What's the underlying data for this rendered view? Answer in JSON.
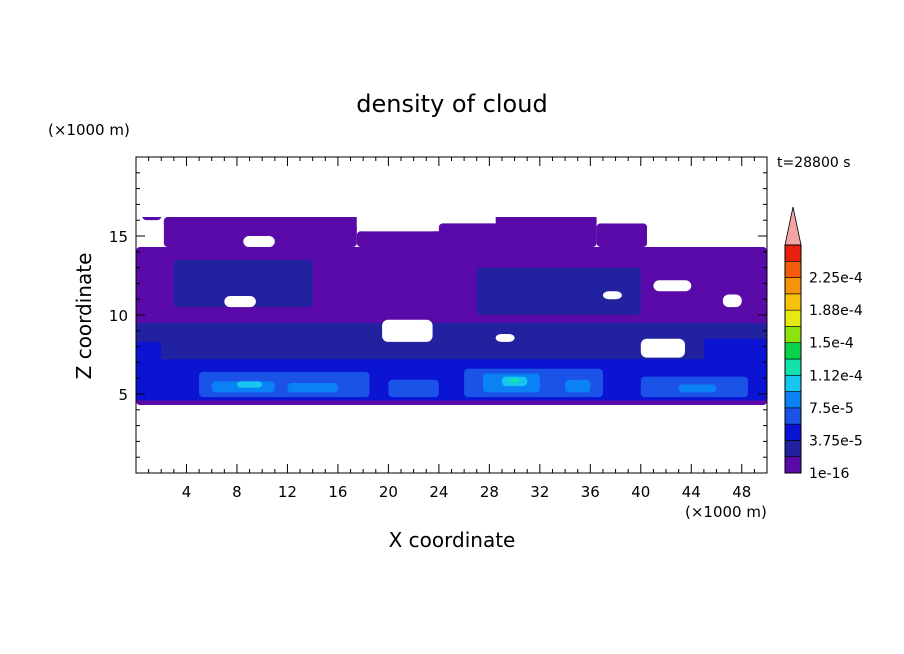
{
  "chart_data": {
    "type": "heatmap",
    "title": "density of cloud",
    "xlabel": "X coordinate",
    "ylabel": "Z coordinate",
    "x_unit": "(×1000 m)",
    "y_unit": "(×1000 m)",
    "time_label": "t=28800 s",
    "xlim": [
      0,
      50
    ],
    "ylim": [
      0,
      20
    ],
    "x_ticks": [
      4,
      8,
      12,
      16,
      20,
      24,
      28,
      32,
      36,
      40,
      44,
      48
    ],
    "y_ticks": [
      5,
      10,
      15
    ],
    "colorbar": {
      "levels": [
        {
          "value": 1e-16,
          "color": "#5a0aa8"
        },
        {
          "value": 1.875e-05,
          "color": "#2222a0"
        },
        {
          "value": 3.75e-05,
          "color": "#0b14d2"
        },
        {
          "value": 5.625e-05,
          "color": "#1b52e8"
        },
        {
          "value": 7.5e-05,
          "color": "#0a82f5"
        },
        {
          "value": 9.375e-05,
          "color": "#16c6ee"
        },
        {
          "value": 0.0001125,
          "color": "#11e2ae"
        },
        {
          "value": 0.00013125,
          "color": "#08d24a"
        },
        {
          "value": 0.00015,
          "color": "#8ce40e"
        },
        {
          "value": 0.00016875,
          "color": "#e8e812"
        },
        {
          "value": 0.0001875,
          "color": "#f7c20c"
        },
        {
          "value": 0.00020625,
          "color": "#f5940a"
        },
        {
          "value": 0.000225,
          "color": "#f25c0a"
        },
        {
          "value": 0.00024375,
          "color": "#e8200e"
        }
      ],
      "labels": [
        "1e-16",
        "3.75e-5",
        "7.5e-5",
        "1.12e-4",
        "1.5e-4",
        "1.88e-4",
        "2.25e-4"
      ],
      "extend_color": "#f3a5a5"
    },
    "regions": [
      {
        "level": 0,
        "x": [
          0,
          50
        ],
        "z": [
          4.3,
          14.3
        ]
      },
      {
        "level": 0,
        "x": [
          2.2,
          11.5
        ],
        "z": [
          14.3,
          16.2
        ]
      },
      {
        "level": 0,
        "x": [
          0.5,
          2.0
        ],
        "z": [
          16.0,
          17.0
        ]
      },
      {
        "level": 0,
        "x": [
          3.0,
          7.0
        ],
        "z": [
          17.0,
          18.0
        ]
      },
      {
        "level": 0,
        "x": [
          11.0,
          17.5
        ],
        "z": [
          14.3,
          17.8
        ]
      },
      {
        "level": 0,
        "x": [
          17.5,
          28.5
        ],
        "z": [
          14.3,
          15.3
        ]
      },
      {
        "level": 0,
        "x": [
          17.0,
          22.0
        ],
        "z": [
          17.0,
          18.8
        ]
      },
      {
        "level": 0,
        "x": [
          24.0,
          30.0
        ],
        "z": [
          14.3,
          15.8
        ]
      },
      {
        "level": 0,
        "x": [
          28.5,
          36.5
        ],
        "z": [
          14.3,
          17.5
        ]
      },
      {
        "level": 0,
        "x": [
          36.5,
          40.5
        ],
        "z": [
          14.3,
          15.8
        ]
      },
      {
        "level": 0,
        "x": [
          47.0,
          50.0
        ],
        "z": [
          18.0,
          18.6
        ]
      },
      {
        "level": 1,
        "x": [
          0,
          50
        ],
        "z": [
          4.8,
          9.5
        ]
      },
      {
        "level": 1,
        "x": [
          3.0,
          14.0
        ],
        "z": [
          10.5,
          13.5
        ]
      },
      {
        "level": 1,
        "x": [
          27.0,
          40.0
        ],
        "z": [
          10.0,
          13.0
        ]
      },
      {
        "level": 2,
        "x": [
          0,
          50
        ],
        "z": [
          4.6,
          7.2
        ]
      },
      {
        "level": 2,
        "x": [
          0,
          2.0
        ],
        "z": [
          7.2,
          8.3
        ]
      },
      {
        "level": 2,
        "x": [
          45.0,
          50.0
        ],
        "z": [
          7.0,
          8.5
        ]
      },
      {
        "level": 3,
        "x": [
          5.0,
          18.5
        ],
        "z": [
          4.8,
          6.4
        ]
      },
      {
        "level": 3,
        "x": [
          20.0,
          24.0
        ],
        "z": [
          4.8,
          5.9
        ]
      },
      {
        "level": 3,
        "x": [
          26.0,
          37.0
        ],
        "z": [
          4.8,
          6.6
        ]
      },
      {
        "level": 3,
        "x": [
          40.0,
          48.5
        ],
        "z": [
          4.8,
          6.1
        ]
      },
      {
        "level": 4,
        "x": [
          6.0,
          11.0
        ],
        "z": [
          5.1,
          5.8
        ]
      },
      {
        "level": 4,
        "x": [
          12.0,
          16.0
        ],
        "z": [
          5.1,
          5.7
        ]
      },
      {
        "level": 4,
        "x": [
          27.5,
          32.0
        ],
        "z": [
          5.1,
          6.3
        ]
      },
      {
        "level": 4,
        "x": [
          34.0,
          36.0
        ],
        "z": [
          5.1,
          5.9
        ]
      },
      {
        "level": 4,
        "x": [
          43.0,
          46.0
        ],
        "z": [
          5.1,
          5.6
        ]
      },
      {
        "level": 5,
        "x": [
          8.0,
          10.0
        ],
        "z": [
          5.4,
          5.8
        ]
      },
      {
        "level": 5,
        "x": [
          29.0,
          31.0
        ],
        "z": [
          5.5,
          6.1
        ]
      },
      {
        "level": 6,
        "x": [
          29.6,
          30.4
        ],
        "z": [
          5.7,
          6.0
        ]
      }
    ],
    "gaps": [
      {
        "x": [
          0,
          50
        ],
        "z": [
          16.2,
          20
        ]
      },
      {
        "x": [
          0,
          2.2
        ],
        "z": [
          14.3,
          16.0
        ]
      },
      {
        "x": [
          8.5,
          11.0
        ],
        "z": [
          14.3,
          15.0
        ]
      },
      {
        "x": [
          17.5,
          24.0
        ],
        "z": [
          15.3,
          17.0
        ]
      },
      {
        "x": [
          36.5,
          50.0
        ],
        "z": [
          15.8,
          18.0
        ]
      },
      {
        "x": [
          40.5,
          50.0
        ],
        "z": [
          14.3,
          15.8
        ]
      },
      {
        "x": [
          19.5,
          23.5
        ],
        "z": [
          8.3,
          9.7
        ]
      },
      {
        "x": [
          7.0,
          9.5
        ],
        "z": [
          10.5,
          11.2
        ]
      },
      {
        "x": [
          41.0,
          44.0
        ],
        "z": [
          11.5,
          12.2
        ]
      },
      {
        "x": [
          46.5,
          48.0
        ],
        "z": [
          10.5,
          11.3
        ]
      },
      {
        "x": [
          40.0,
          43.5
        ],
        "z": [
          7.3,
          8.5
        ]
      },
      {
        "x": [
          28.5,
          30.0
        ],
        "z": [
          8.3,
          8.8
        ]
      },
      {
        "x": [
          37.0,
          38.5
        ],
        "z": [
          11.0,
          11.5
        ]
      }
    ]
  }
}
